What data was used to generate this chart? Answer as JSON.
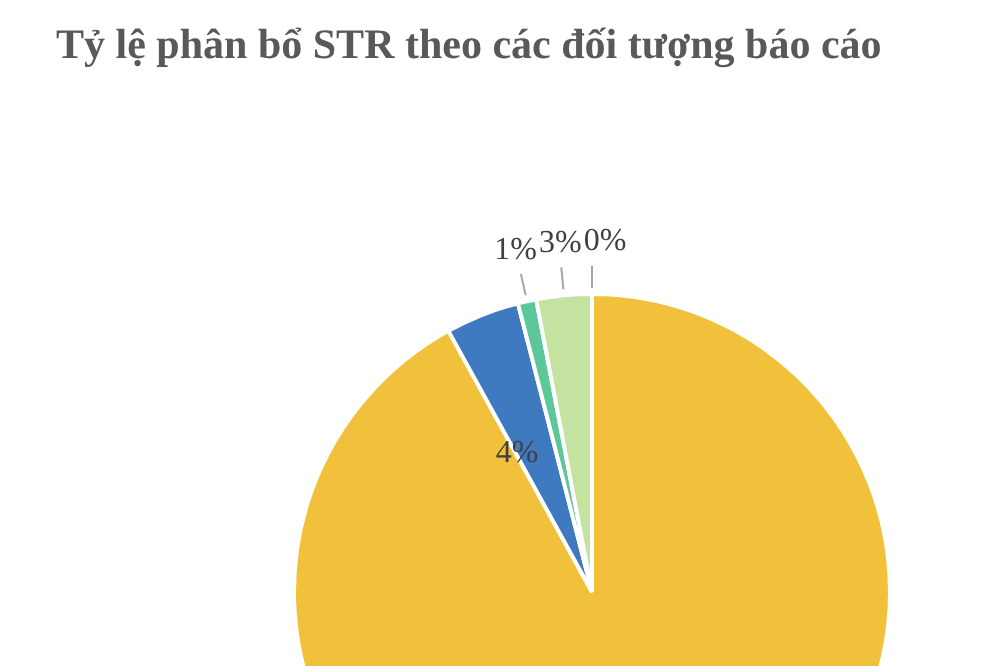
{
  "chart_data": {
    "type": "pie",
    "title": "Tỷ lệ phân bổ STR theo các đối tượng báo cáo",
    "categories": [
      null,
      null,
      null,
      null,
      null
    ],
    "values": [
      92,
      4,
      1,
      3,
      0
    ],
    "colors": [
      "#f2c13c",
      "#3f79c0",
      "#5cc89a",
      "#c5e3a0",
      "#a5a5a5"
    ],
    "value_labels": [
      null,
      "4%",
      "1%",
      "3%",
      "0%"
    ],
    "legend": false
  }
}
